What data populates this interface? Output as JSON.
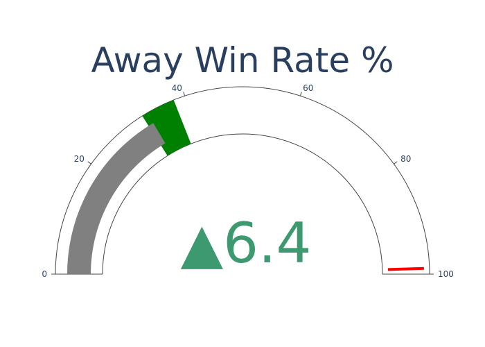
{
  "chart_data": {
    "type": "gauge",
    "title": "Away Win Rate %",
    "axis_range": [
      0,
      100
    ],
    "tick_labels": [
      "0",
      "20",
      "40",
      "60",
      "80",
      "100"
    ],
    "value": 33.0,
    "delta": {
      "symbol": "▲",
      "value": "6.4",
      "direction": "increasing"
    },
    "steps": [
      {
        "range": [
          32,
          38
        ]
      }
    ],
    "threshold": {
      "value": 99
    },
    "colors": {
      "bar": "#808080",
      "step": "#008000",
      "threshold": "#ff0000",
      "delta": "#3d9970",
      "title": "#2a3f5f",
      "outline": "#444444",
      "background": "#ffffff"
    }
  }
}
